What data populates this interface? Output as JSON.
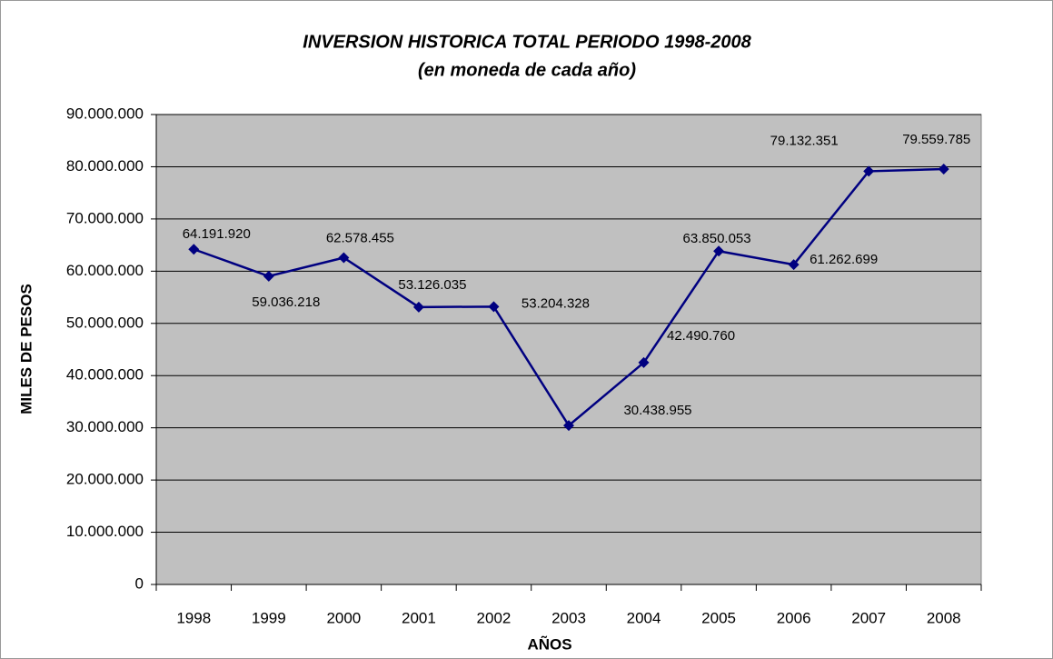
{
  "chart_data": {
    "type": "line",
    "title": "INVERSION HISTORICA TOTAL PERIODO 1998-2008",
    "subtitle": "(en moneda de cada año)",
    "x_label": "AÑOS",
    "y_label": "MILES DE PESOS",
    "categories": [
      "1998",
      "1999",
      "2000",
      "2001",
      "2002",
      "2003",
      "2004",
      "2005",
      "2006",
      "2007",
      "2008"
    ],
    "values": [
      64191920,
      59036218,
      62578455,
      53126035,
      53204328,
      30438955,
      42490760,
      63850053,
      61262699,
      79132351,
      79559785
    ],
    "value_labels": [
      "64.191.920",
      "59.036.218",
      "62.578.455",
      "53.126.035",
      "53.204.328",
      "30.438.955",
      "42.490.760",
      "63.850.053",
      "61.262.699",
      "79.132.351",
      "79.559.785"
    ],
    "color": "#000080",
    "ylim": [
      0,
      90000000
    ],
    "yticks": [
      0,
      {
        "value": 10000000,
        "label": "10.000.000"
      },
      {
        "value": 20000000,
        "label": "20.000.000"
      },
      {
        "value": 30000000,
        "label": "30.000.000"
      },
      {
        "value": 40000000,
        "label": "40.000.000"
      },
      {
        "value": 50000000,
        "label": "50.000.000"
      },
      {
        "value": 60000000,
        "label": "60.000.000"
      },
      {
        "value": 70000000,
        "label": "70.000.000"
      },
      {
        "value": 80000000,
        "label": "80.000.000"
      },
      {
        "value": 90000000,
        "label": "90.000.000"
      }
    ],
    "grid": true
  }
}
